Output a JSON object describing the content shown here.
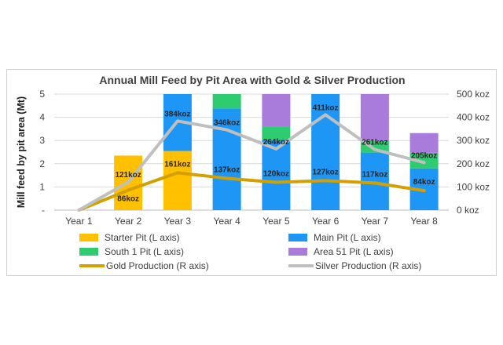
{
  "chart_data": {
    "type": "bar",
    "title": "Annual Mill Feed by Pit Area with Gold & Silver Production",
    "ylabel": "Mill feed by pit area (Mt)",
    "categories": [
      "Year 1",
      "Year 2",
      "Year 3",
      "Year 4",
      "Year 5",
      "Year 6",
      "Year 7",
      "Year 8"
    ],
    "y_ticks": [
      "-",
      "1",
      "2",
      "3",
      "4",
      "5"
    ],
    "y2_ticks": [
      "0 koz",
      "100 koz",
      "200 koz",
      "300 koz",
      "400 koz",
      "500 koz"
    ],
    "ylim": [
      0,
      5
    ],
    "y2lim": [
      0,
      500
    ],
    "stacked": true,
    "grid": true,
    "legend_position": "bottom",
    "series": [
      {
        "name": "Starter Pit (L axis)",
        "axis": "left",
        "kind": "bar",
        "color": "#FFC000",
        "values": [
          0,
          2.35,
          2.55,
          0,
          0,
          0,
          0,
          0
        ]
      },
      {
        "name": "Main Pit (L axis)",
        "axis": "left",
        "kind": "bar",
        "color": "#1E96F5",
        "values": [
          0,
          0,
          2.45,
          4.38,
          3.02,
          5.0,
          2.48,
          1.8
        ]
      },
      {
        "name": "South 1 Pit (L axis)",
        "axis": "left",
        "kind": "bar",
        "color": "#2ECC71",
        "values": [
          0,
          0,
          0,
          0.62,
          0.58,
          0,
          0.52,
          0.67
        ]
      },
      {
        "name": "Area 51 Pit (L axis)",
        "axis": "left",
        "kind": "bar",
        "color": "#A97BDB",
        "values": [
          0,
          0,
          0,
          0,
          1.4,
          0,
          2.0,
          0.85
        ]
      },
      {
        "name": "Gold Production (R axis)",
        "axis": "right",
        "kind": "line",
        "color": "#D4A000",
        "values": [
          0,
          86,
          161,
          137,
          120,
          127,
          117,
          84
        ]
      },
      {
        "name": "Silver Production (R axis)",
        "axis": "right",
        "kind": "line",
        "color": "#BFBFBF",
        "values": [
          0,
          121,
          384,
          346,
          264,
          411,
          261,
          205
        ]
      }
    ],
    "gold_labels": [
      "86koz",
      "161koz",
      "137koz",
      "120koz",
      "127koz",
      "117koz",
      "84koz"
    ],
    "silver_labels": [
      "121koz",
      "384koz",
      "346koz",
      "264koz",
      "411koz",
      "261koz",
      "205koz"
    ]
  }
}
